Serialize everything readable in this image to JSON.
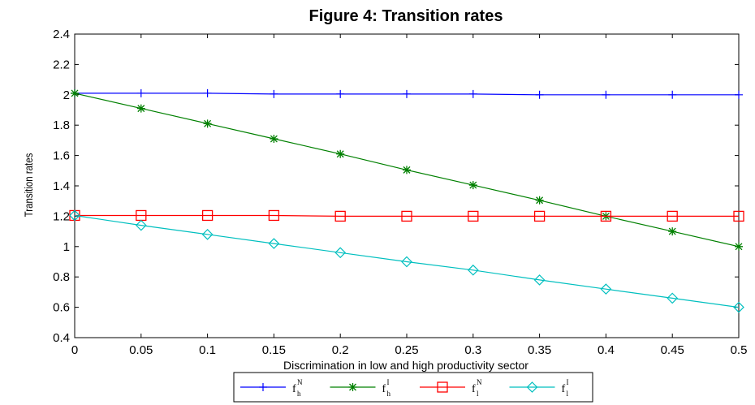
{
  "chart_data": {
    "type": "line",
    "title": "Figure 4: Transition rates",
    "xlabel": "Discrimination in low and high productivity sector",
    "ylabel": "Transition rates",
    "xlim": [
      0,
      0.5
    ],
    "ylim": [
      0.4,
      2.4
    ],
    "x": [
      0,
      0.05,
      0.1,
      0.15,
      0.2,
      0.25,
      0.3,
      0.35,
      0.4,
      0.45,
      0.5
    ],
    "x_tick_labels": [
      "0",
      "0.05",
      "0.1",
      "0.15",
      "0.2",
      "0.25",
      "0.3",
      "0.35",
      "0.4",
      "0.45",
      "0.5"
    ],
    "y_ticks": [
      0.4,
      0.6,
      0.8,
      1.0,
      1.2,
      1.4,
      1.6,
      1.8,
      2.0,
      2.2,
      2.4
    ],
    "y_tick_labels": [
      "0.4",
      "0.6",
      "0.8",
      "1",
      "1.2",
      "1.4",
      "1.6",
      "1.8",
      "2",
      "2.2",
      "2.4"
    ],
    "grid": false,
    "legend_position": "bottom",
    "series": [
      {
        "name": "f_h^N",
        "label_main": "f",
        "label_sup": "N",
        "label_sub": "h",
        "color": "#0000ff",
        "marker": "plus",
        "values": [
          2.01,
          2.01,
          2.01,
          2.005,
          2.005,
          2.005,
          2.005,
          2.0,
          2.0,
          2.0,
          2.0
        ]
      },
      {
        "name": "f_h^I",
        "label_main": "f",
        "label_sup": "I",
        "label_sub": "h",
        "color": "#008000",
        "marker": "star",
        "values": [
          2.01,
          1.91,
          1.81,
          1.71,
          1.61,
          1.505,
          1.405,
          1.305,
          1.2,
          1.1,
          1.0
        ]
      },
      {
        "name": "f_l^N",
        "label_main": "f",
        "label_sup": "N",
        "label_sub": "l",
        "color": "#ff0000",
        "marker": "square",
        "values": [
          1.205,
          1.205,
          1.205,
          1.205,
          1.2,
          1.2,
          1.2,
          1.2,
          1.2,
          1.2,
          1.2
        ]
      },
      {
        "name": "f_l^I",
        "label_main": "f",
        "label_sup": "I",
        "label_sub": "l",
        "color": "#00bfbf",
        "marker": "diamond",
        "values": [
          1.205,
          1.14,
          1.08,
          1.02,
          0.96,
          0.9,
          0.845,
          0.78,
          0.72,
          0.66,
          0.6
        ]
      }
    ]
  }
}
